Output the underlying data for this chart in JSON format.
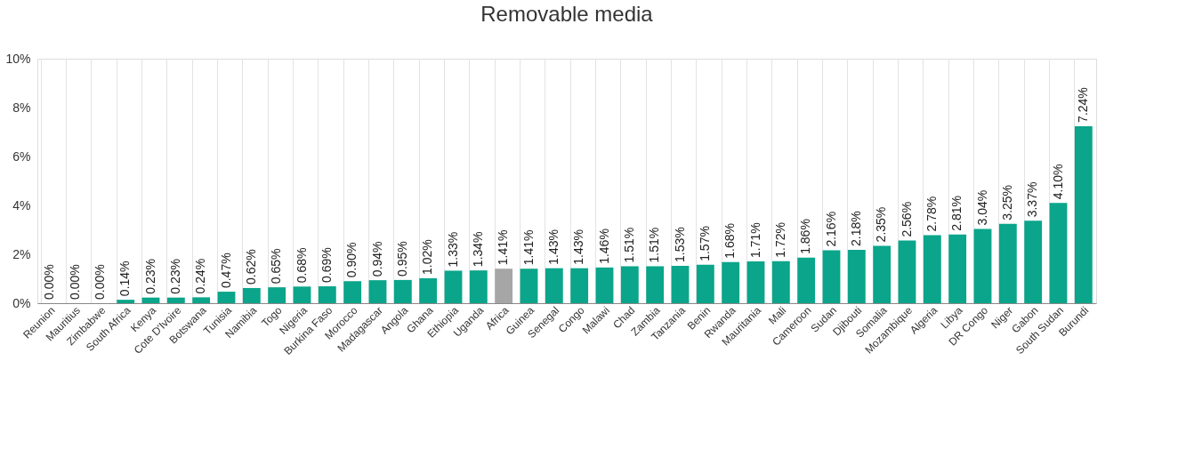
{
  "chart_data": {
    "type": "bar",
    "title": "Removable media",
    "categories": [
      "Reunion",
      "Mauritius",
      "Zimbabwe",
      "South Africa",
      "Kenya",
      "Cote D'Ivoire",
      "Botswana",
      "Tunisia",
      "Namibia",
      "Togo",
      "Nigeria",
      "Burkina Faso",
      "Morocco",
      "Madagascar",
      "Angola",
      "Ghana",
      "Ethiopia",
      "Uganda",
      "Africa",
      "Guinea",
      "Senegal",
      "Congo",
      "Malawi",
      "Chad",
      "Zambia",
      "Tanzania",
      "Benin",
      "Rwanda",
      "Mauritania",
      "Mali",
      "Cameroon",
      "Sudan",
      "Djibouti",
      "Somalia",
      "Mozambique",
      "Algeria",
      "Libya",
      "DR Congo",
      "Niger",
      "Gabon",
      "South Sudan",
      "Burundi"
    ],
    "values": [
      0.0,
      0.0,
      0.0,
      0.14,
      0.23,
      0.23,
      0.24,
      0.47,
      0.62,
      0.65,
      0.68,
      0.69,
      0.9,
      0.94,
      0.95,
      1.02,
      1.33,
      1.34,
      1.41,
      1.41,
      1.43,
      1.43,
      1.46,
      1.51,
      1.51,
      1.53,
      1.57,
      1.68,
      1.71,
      1.72,
      1.86,
      2.16,
      2.18,
      2.35,
      2.56,
      2.78,
      2.81,
      3.04,
      3.25,
      3.37,
      4.1,
      7.24
    ],
    "value_labels": [
      "0.00%",
      "0.00%",
      "0.00%",
      "0.14%",
      "0.23%",
      "0.23%",
      "0.24%",
      "0.47%",
      "0.62%",
      "0.65%",
      "0.68%",
      "0.69%",
      "0.90%",
      "0.94%",
      "0.95%",
      "1.02%",
      "1.33%",
      "1.34%",
      "1.41%",
      "1.41%",
      "1.43%",
      "1.43%",
      "1.46%",
      "1.51%",
      "1.51%",
      "1.53%",
      "1.57%",
      "1.68%",
      "1.71%",
      "1.72%",
      "1.86%",
      "2.16%",
      "2.18%",
      "2.35%",
      "2.56%",
      "2.78%",
      "2.81%",
      "3.04%",
      "3.25%",
      "3.37%",
      "4.10%",
      "7.24%"
    ],
    "colors": [
      "#0aa58a",
      "#0aa58a",
      "#0aa58a",
      "#0aa58a",
      "#0aa58a",
      "#0aa58a",
      "#0aa58a",
      "#0aa58a",
      "#0aa58a",
      "#0aa58a",
      "#0aa58a",
      "#0aa58a",
      "#0aa58a",
      "#0aa58a",
      "#0aa58a",
      "#0aa58a",
      "#0aa58a",
      "#0aa58a",
      "#a6a6a6",
      "#0aa58a",
      "#0aa58a",
      "#0aa58a",
      "#0aa58a",
      "#0aa58a",
      "#0aa58a",
      "#0aa58a",
      "#0aa58a",
      "#0aa58a",
      "#0aa58a",
      "#0aa58a",
      "#0aa58a",
      "#0aa58a",
      "#0aa58a",
      "#0aa58a",
      "#0aa58a",
      "#0aa58a",
      "#0aa58a",
      "#0aa58a",
      "#0aa58a",
      "#0aa58a",
      "#0aa58a",
      "#0aa58a"
    ],
    "ylim": [
      0,
      10
    ],
    "yticks": [
      {
        "value": 0,
        "label": "0%"
      },
      {
        "value": 2,
        "label": "2%"
      },
      {
        "value": 4,
        "label": "4%"
      },
      {
        "value": 6,
        "label": "6%"
      },
      {
        "value": 8,
        "label": "8%"
      },
      {
        "value": 10,
        "label": "10%"
      }
    ],
    "grid": "x"
  }
}
